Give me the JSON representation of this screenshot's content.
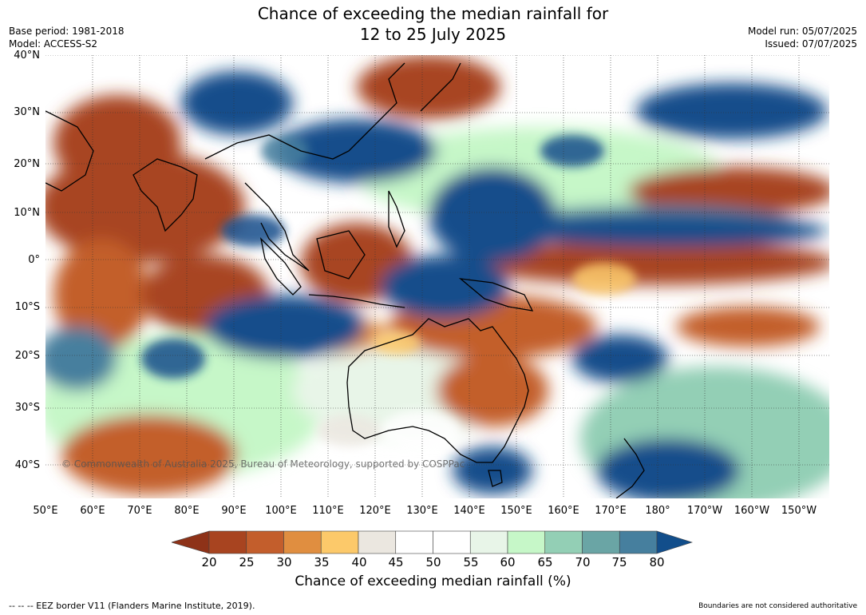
{
  "header": {
    "title_line1": "Chance of exceeding the median rainfall for",
    "title_line2": "12 to 25 July 2025",
    "base_period": "Base period: 1981-2018",
    "model": "Model: ACCESS-S2",
    "model_run": "Model run: 05/07/2025",
    "issued": "Issued: 07/07/2025"
  },
  "map": {
    "lat_labels": [
      "40°N",
      "30°N",
      "20°N",
      "10°N",
      "0°",
      "10°S",
      "20°S",
      "30°S",
      "40°S"
    ],
    "lon_labels": [
      "50°E",
      "60°E",
      "70°E",
      "80°E",
      "90°E",
      "100°E",
      "110°E",
      "120°E",
      "130°E",
      "140°E",
      "150°E",
      "160°E",
      "170°E",
      "180°",
      "170°W",
      "160°W",
      "150°W"
    ],
    "watermark": "© Commonwealth of Australia 2025, Bureau of Meteorology, supported by COSPPac"
  },
  "colorbar": {
    "ticks": [
      "20",
      "25",
      "30",
      "35",
      "40",
      "45",
      "50",
      "55",
      "60",
      "65",
      "70",
      "75",
      "80"
    ],
    "colors": [
      "#8e3218",
      "#a84420",
      "#c35e2c",
      "#e08e40",
      "#fcc96a",
      "#ebe7e0",
      "#ffffff",
      "#ffffff",
      "#e8f5e8",
      "#c6f7c8",
      "#93cfb5",
      "#6aa5a5",
      "#467f9e",
      "#124e8b"
    ],
    "label": "Chance of exceeding median rainfall (%)"
  },
  "footer": {
    "eez_note": "--  --  -- EEZ border V11 (Flanders Marine Institute, 2019).",
    "disclaimer": "Boundaries are not considered authoritative"
  }
}
